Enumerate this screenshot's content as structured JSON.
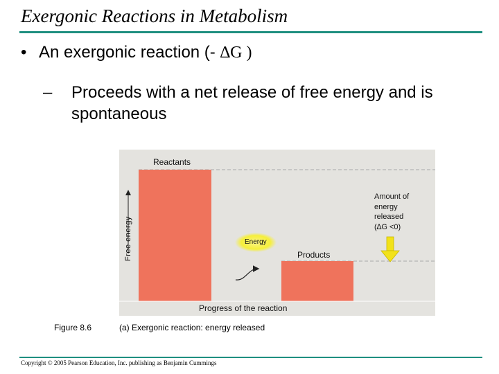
{
  "slide": {
    "title": "Exergonic Reactions in Metabolism",
    "bullet_dot": "•",
    "bullet_text": "An exergonic reaction (- ",
    "bullet_symbol": "∆G )",
    "sub_dash": "–",
    "sub_text": "Proceeds with a net release of free energy and is spontaneous",
    "footer": "Copyright © 2005 Pearson Education, Inc. publishing as Benjamin Cummings"
  },
  "figure": {
    "reactants_label": "Reactants",
    "products_label": "Products",
    "energy_label": "Energy",
    "y_axis_label": "Free energy",
    "x_axis_label": "Progress of the reaction",
    "amount_lines": [
      "Amount of",
      "energy",
      "released",
      "(∆G <0)"
    ],
    "figure_number": "Figure 8.6",
    "caption": "(a) Exergonic reaction: energy released",
    "colors": {
      "background": "#e4e3df",
      "bar": "#ef735c",
      "arrow": "#f2e21a",
      "energy_glow": "#f6ef3a",
      "rule": "#1f8f80"
    }
  }
}
